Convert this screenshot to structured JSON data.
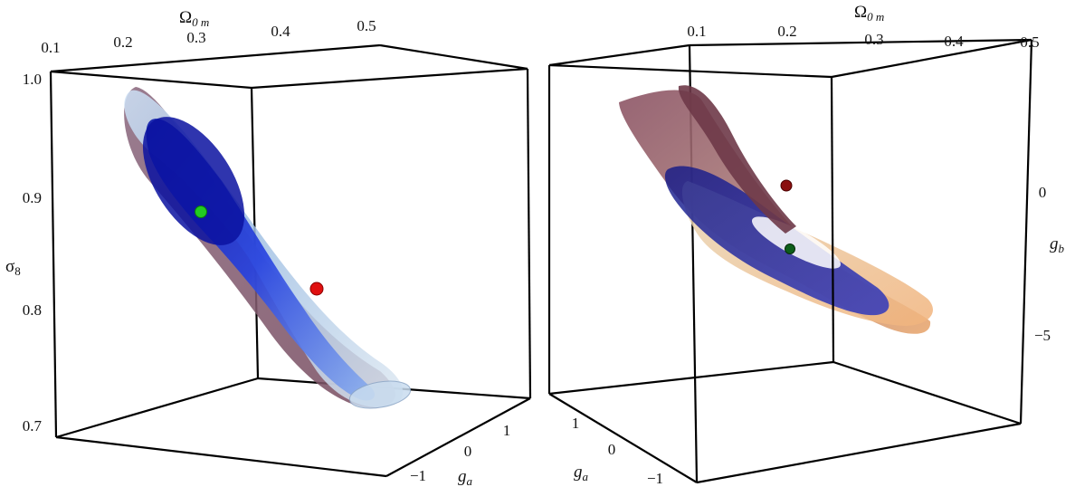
{
  "chart_data": [
    {
      "type": "3d-contour",
      "axes": {
        "x": {
          "label": "Ω0 m",
          "ticks": [
            "0.1",
            "0.2",
            "0.3",
            "0.4",
            "0.5"
          ]
        },
        "y": {
          "label": "σ8",
          "ticks": [
            "1.0",
            "0.9",
            "0.8",
            "0.7"
          ]
        },
        "z": {
          "label": "ga",
          "ticks": [
            "1",
            "0",
            "−1"
          ]
        }
      },
      "colors": {
        "inner": "#1020c8",
        "outer_light": "#bcd6f0",
        "outer_dark": "#7a4f62",
        "best_fit": "#22cc22",
        "reference": "#e01010"
      }
    },
    {
      "type": "3d-contour",
      "axes": {
        "x": {
          "label": "Ω0 m",
          "ticks": [
            "0.1",
            "0.2",
            "0.3",
            "0.4",
            "0.5"
          ]
        },
        "y": {
          "label": "gb",
          "ticks": [
            "0",
            "−5"
          ]
        },
        "z": {
          "label": "ga",
          "ticks": [
            "1",
            "0",
            "−1"
          ]
        }
      },
      "colors": {
        "inner": "#1a1f9a",
        "outer_light": "#e8c89a",
        "outer_dark": "#7a4454",
        "best_fit": "#0d5e1a",
        "reference": "#8a1010"
      }
    }
  ],
  "labels": {
    "omega_main": "Ω",
    "omega_sub": "0 m",
    "sigma_main": "σ",
    "sigma_sub": "8",
    "g_main": "g",
    "ga_sub": "a",
    "gb_sub": "b"
  }
}
